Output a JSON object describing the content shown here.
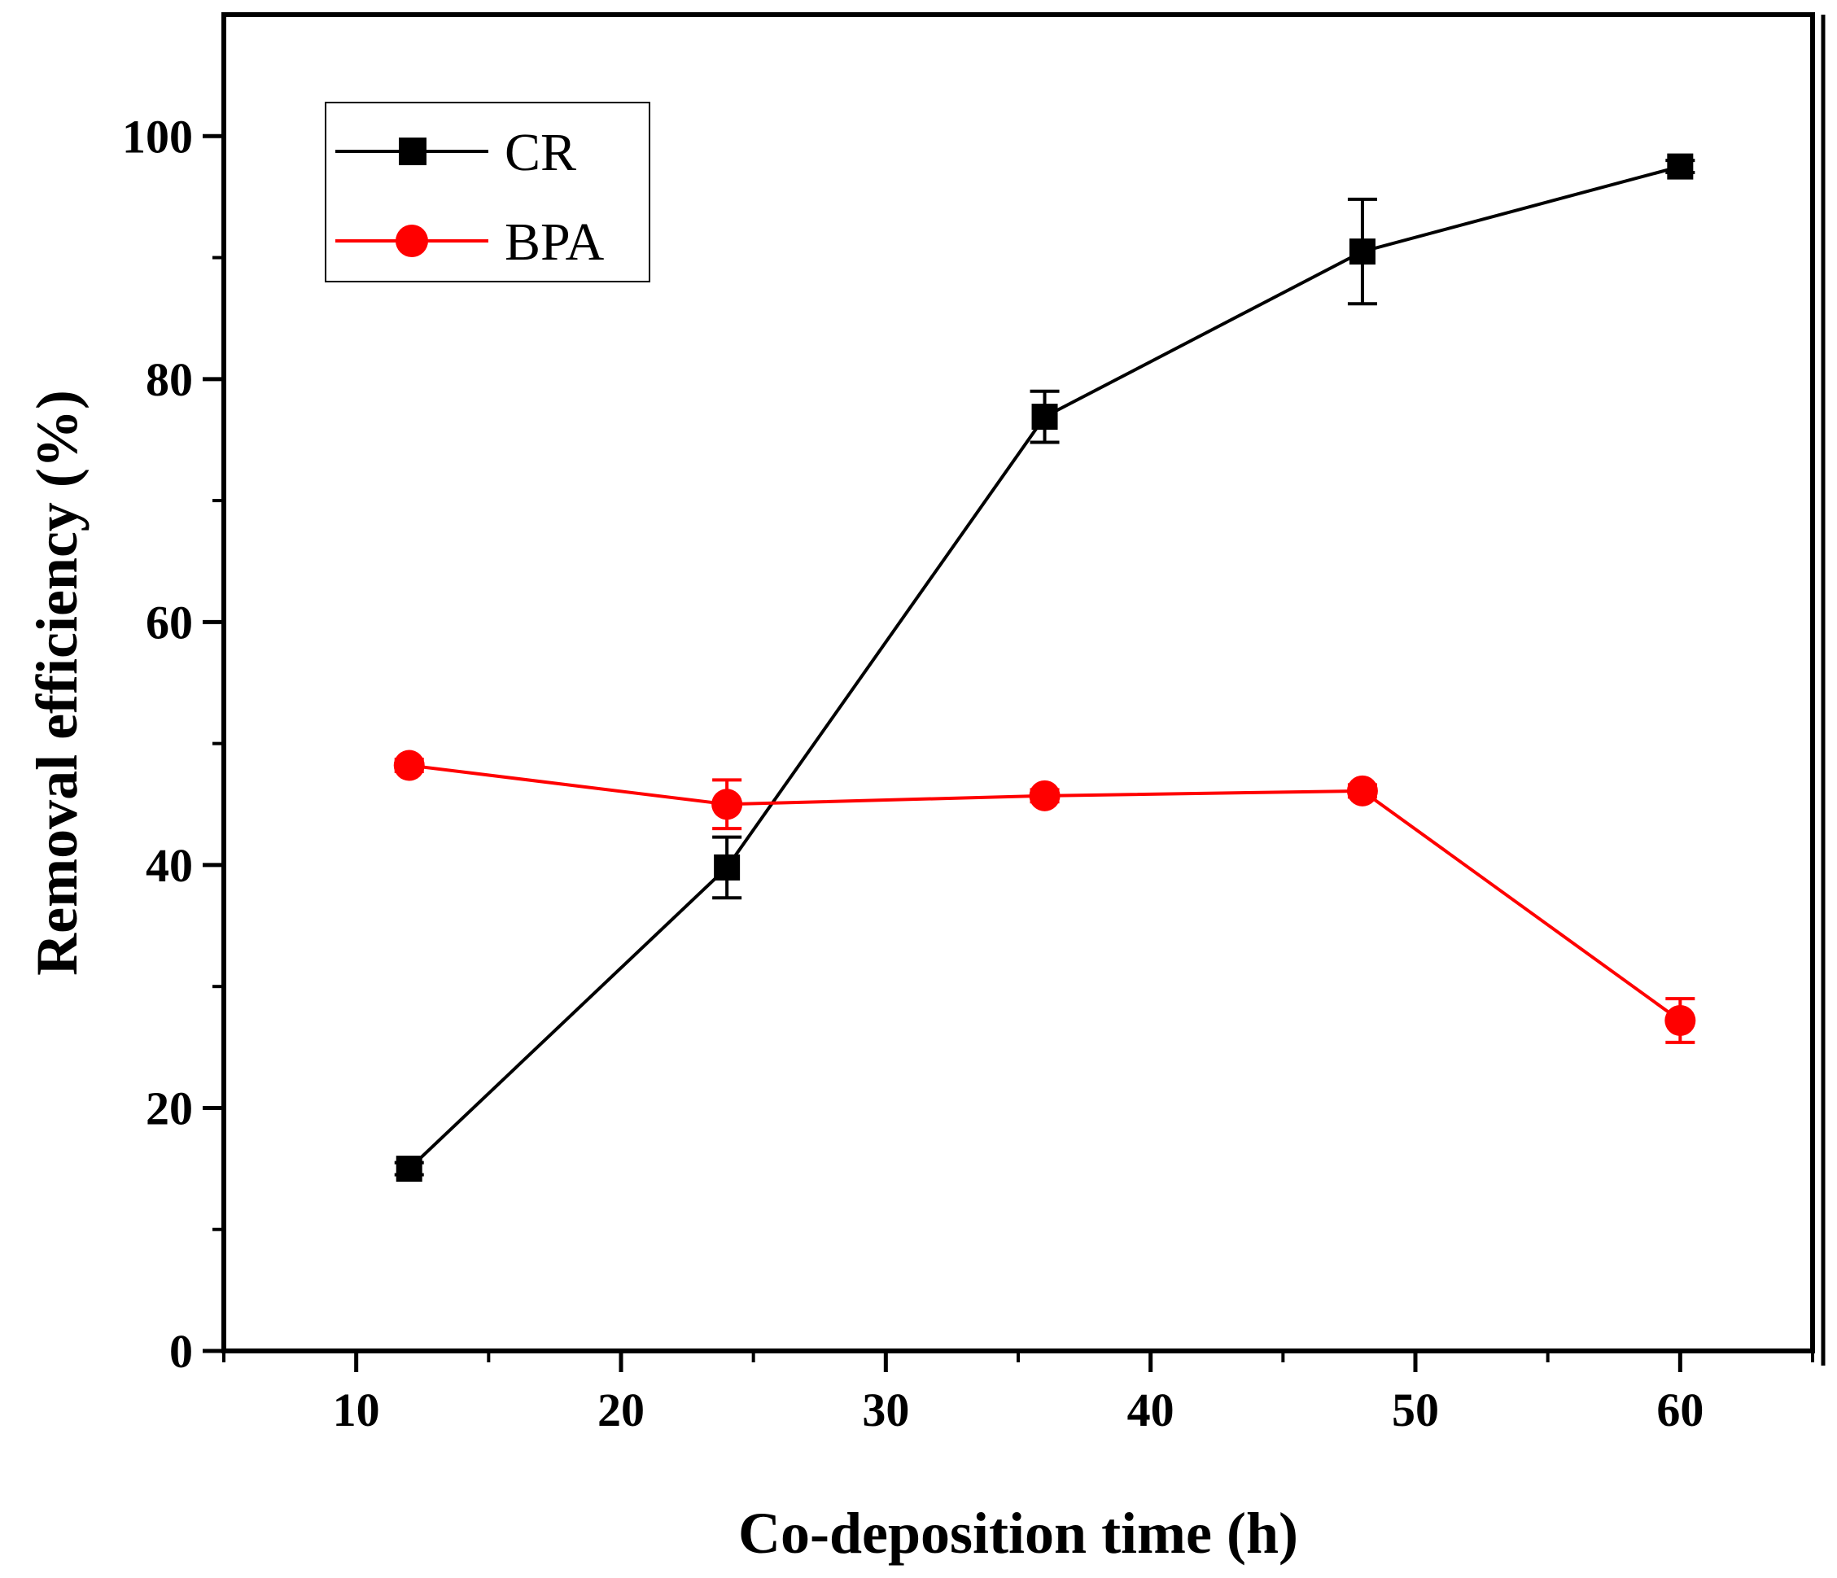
{
  "chart_data": {
    "type": "line",
    "title": "",
    "xlabel": "Co-deposition time (h)",
    "ylabel": "Removal efficiency (%)",
    "xlim": [
      5,
      65
    ],
    "ylim": [
      0,
      110
    ],
    "xticks": [
      10,
      20,
      30,
      40,
      50,
      60
    ],
    "xtick_labels": [
      "10",
      "20",
      "30",
      "40",
      "50",
      "60"
    ],
    "yticks": [
      0,
      20,
      40,
      60,
      80,
      100
    ],
    "ytick_labels": [
      "0",
      "20",
      "40",
      "60",
      "80",
      "100"
    ],
    "legend_position": "top-left",
    "grid": false,
    "series": [
      {
        "name": "CR",
        "color": "#000000",
        "marker": "square",
        "x": [
          12,
          24,
          36,
          48,
          60
        ],
        "values": [
          15.0,
          39.8,
          76.9,
          90.5,
          97.5
        ],
        "errors": [
          0.5,
          2.5,
          2.1,
          4.3,
          0.5
        ]
      },
      {
        "name": "BPA",
        "color": "#ff0000",
        "marker": "circle",
        "x": [
          12,
          24,
          36,
          48,
          60
        ],
        "values": [
          48.2,
          45.0,
          45.7,
          46.1,
          27.2
        ],
        "errors": [
          0.5,
          2.0,
          0.5,
          0.5,
          1.8
        ]
      }
    ]
  }
}
